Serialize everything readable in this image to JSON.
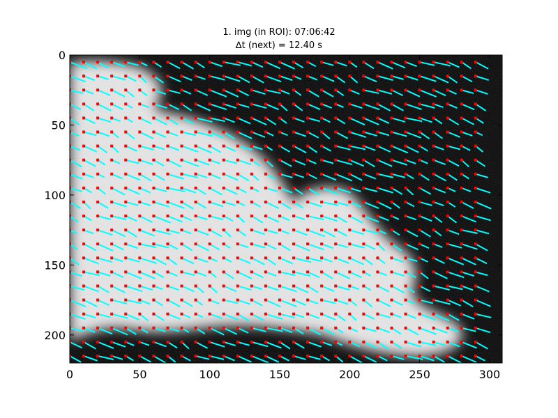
{
  "chart_data": {
    "type": "image_vector_field",
    "title_line1": "1. img (in ROI): 07:06:42",
    "title_line2": "∆t (next) = 12.40 s",
    "xlim": [
      0,
      309
    ],
    "ylim": [
      220,
      0
    ],
    "xticks": [
      0,
      50,
      100,
      150,
      200,
      250,
      300
    ],
    "yticks": [
      0,
      50,
      100,
      150,
      200
    ],
    "xtick_labels": [
      "0",
      "50",
      "100",
      "150",
      "200",
      "250",
      "300"
    ],
    "ytick_labels": [
      "0",
      "50",
      "100",
      "150",
      "200"
    ],
    "vector_color": "#00ffff",
    "marker_color": "#ff0000",
    "background_color": "#000000",
    "plume_color": "#e0e0e0",
    "grid_spacing": 10,
    "vector_field": {
      "x_start": 0,
      "x_end": 290,
      "y_start": 5,
      "y_end": 215,
      "mean_dx": 8.5,
      "mean_dy": 3.6
    }
  }
}
